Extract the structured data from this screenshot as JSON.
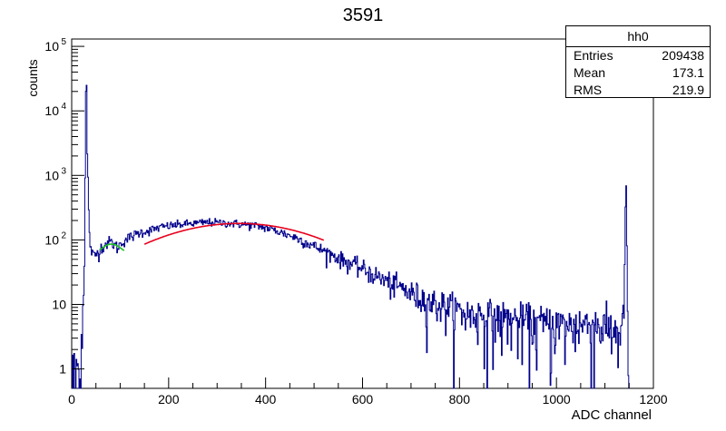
{
  "chart_data": {
    "type": "histogram",
    "title": "3591",
    "xlabel": "ADC channel",
    "ylabel": "counts",
    "xlim": [
      0,
      1200
    ],
    "ylim": [
      0.5,
      130000
    ],
    "y_scale": "log",
    "x_ticks": [
      "0",
      "200",
      "400",
      "600",
      "800",
      "1000",
      "1200"
    ],
    "y_ticks": [
      {
        "value": 1,
        "label": "1"
      },
      {
        "value": 10,
        "label": "10"
      },
      {
        "value": 100,
        "label": "10",
        "exp": "2"
      },
      {
        "value": 1000,
        "label": "10",
        "exp": "3"
      },
      {
        "value": 10000,
        "label": "10",
        "exp": "4"
      },
      {
        "value": 100000,
        "label": "10",
        "exp": "5"
      }
    ],
    "series": [
      {
        "color": "#00008b",
        "x": [
          2,
          6,
          10,
          14,
          18,
          22,
          26,
          28,
          30,
          32,
          34,
          36,
          38,
          40,
          42,
          45,
          50,
          55,
          60,
          65,
          70,
          75,
          80,
          85,
          90,
          95,
          100,
          110,
          120,
          140,
          160,
          180,
          200,
          220,
          240,
          260,
          280,
          300,
          320,
          340,
          360,
          380,
          400,
          420,
          440,
          460,
          480,
          500,
          520,
          540,
          560,
          580,
          600,
          620,
          640,
          660,
          680,
          700,
          720,
          740,
          760,
          780,
          800,
          820,
          840,
          860,
          880,
          900,
          920,
          940,
          960,
          980,
          1000,
          1020,
          1040,
          1060,
          1080,
          1100,
          1120,
          1130,
          1135,
          1140,
          1142,
          1144,
          1146,
          1148,
          1150
        ],
        "y": [
          0.8,
          0.6,
          1.2,
          0.7,
          1.5,
          5,
          30,
          1500,
          95000,
          2500,
          800,
          150,
          85,
          78,
          62,
          55,
          60,
          65,
          75,
          82,
          86,
          92,
          95,
          88,
          82,
          76,
          85,
          100,
          110,
          130,
          140,
          155,
          165,
          172,
          178,
          182,
          188,
          185,
          182,
          178,
          172,
          165,
          155,
          140,
          125,
          110,
          95,
          80,
          68,
          58,
          48,
          42,
          36,
          30,
          25,
          21,
          18,
          15,
          13,
          11,
          10,
          9,
          8,
          7,
          7,
          6.5,
          6,
          6,
          5.5,
          5.5,
          5,
          5,
          5,
          4.5,
          5,
          5,
          5,
          4.5,
          4,
          4,
          3,
          15,
          250,
          800,
          20,
          1,
          0.6
        ]
      }
    ],
    "fits": [
      {
        "color": "#1fbf1f",
        "x": [
          58,
          108
        ],
        "gauss_center": 82,
        "gauss_sigma": 20,
        "gauss_peak": 86,
        "base": 55
      },
      {
        "color": "#e8001c",
        "x": [
          150,
          520
        ],
        "gauss_center": 345,
        "gauss_sigma": 160,
        "gauss_peak": 180
      }
    ],
    "stats_box": {
      "name": "hh0",
      "rows": [
        {
          "label": "Entries",
          "value": "209438"
        },
        {
          "label": "Mean",
          "value": "173.1"
        },
        {
          "label": "RMS",
          "value": "219.9"
        }
      ]
    }
  }
}
